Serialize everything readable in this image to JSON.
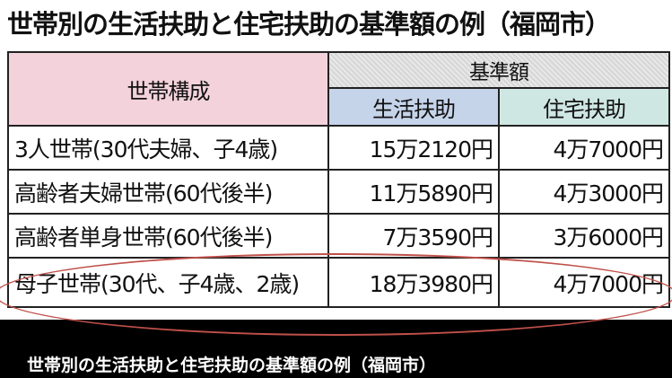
{
  "title": "世帯別の生活扶助と住宅扶助の基準額の例（福岡市）",
  "table": {
    "header": {
      "household": "世帯構成",
      "standard_amount": "基準額",
      "living_assistance": "生活扶助",
      "housing_assistance": "住宅扶助"
    },
    "rows": [
      {
        "household": "3人世帯(30代夫婦、子4歳)",
        "living": "15万2120円",
        "housing": "4万7000円"
      },
      {
        "household": "高齢者夫婦世帯(60代後半)",
        "living": "11万5890円",
        "housing": "4万3000円"
      },
      {
        "household": "高齢者単身世帯(60代後半)",
        "living": "7万3590円",
        "housing": "3万6000円"
      },
      {
        "household": "母子世帯(30代、子4歳、2歳)",
        "living": "18万3980円",
        "housing": "4万7000円"
      }
    ]
  },
  "caption": "世帯別の生活扶助と住宅扶助の基準額の例（福岡市）",
  "colors": {
    "household_header": "#f3d2dc",
    "living_header": "#c6d4ea",
    "housing_header": "#cfe7e2",
    "highlight_ellipse": "#c0504a"
  }
}
